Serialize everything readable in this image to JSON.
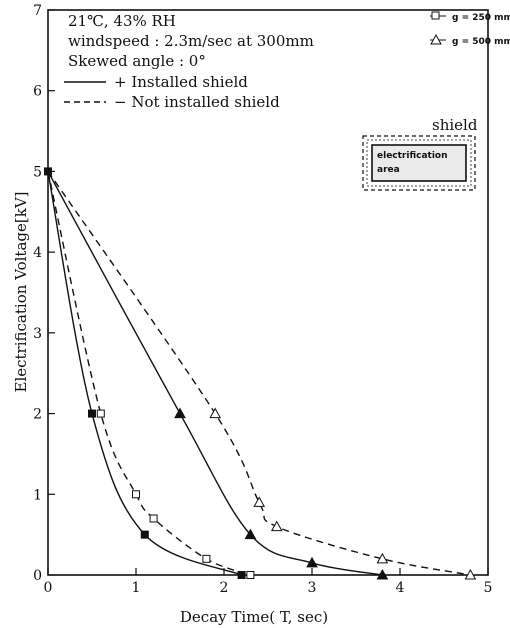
{
  "chart_data": {
    "type": "line",
    "title": "",
    "xlabel": "Decay Time( T,  sec)",
    "ylabel": "Electrification Voltage[kV]",
    "xlim": [
      0,
      5
    ],
    "ylim": [
      0,
      7
    ],
    "x_ticks": [
      "0",
      "1",
      "2",
      "3",
      "4",
      "5"
    ],
    "y_ticks": [
      "0",
      "1",
      "2",
      "3",
      "4",
      "5",
      "6",
      "7"
    ],
    "grid": false,
    "annotations": {
      "conditions": [
        "21℃, 43% RH",
        "windspeed : 2.3m/sec at 300mm",
        "Skewed angle : 0°"
      ],
      "style_legend": [
        "+ Installed shield",
        "− Not installed shield"
      ],
      "marker_legend": [
        "g = 250 mm",
        "g = 500 mm"
      ],
      "inset": {
        "title": "shield",
        "line1": "electrification",
        "line2": "area"
      }
    },
    "series": [
      {
        "group": "g = 250 mm",
        "shield": "installed",
        "line": "solid",
        "marker": "filled-square",
        "x": [
          0,
          0.5,
          1.1,
          2.2
        ],
        "y": [
          5,
          2.0,
          0.5,
          0
        ]
      },
      {
        "group": "g = 250 mm",
        "shield": "not installed",
        "line": "dashed",
        "marker": "open-square",
        "x": [
          0,
          0.6,
          1.0,
          1.2,
          1.8,
          2.3
        ],
        "y": [
          5,
          2.0,
          1.0,
          0.7,
          0.2,
          0
        ]
      },
      {
        "group": "g = 500 mm",
        "shield": "installed",
        "line": "solid",
        "marker": "filled-triangle",
        "x": [
          0,
          1.5,
          2.3,
          3.0,
          3.8
        ],
        "y": [
          5,
          2.0,
          0.5,
          0.15,
          0
        ]
      },
      {
        "group": "g = 500 mm",
        "shield": "not installed",
        "line": "dashed",
        "marker": "open-triangle",
        "x": [
          0,
          1.9,
          2.4,
          2.6,
          3.8,
          4.8
        ],
        "y": [
          5,
          2.0,
          0.9,
          0.6,
          0.2,
          0
        ]
      }
    ]
  }
}
